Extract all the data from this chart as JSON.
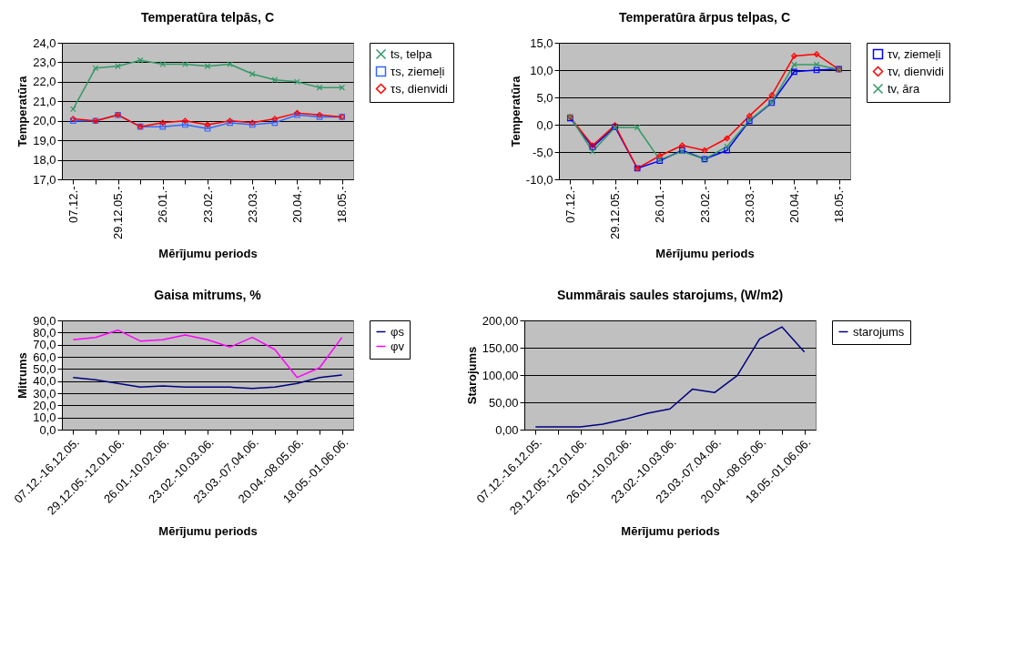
{
  "chart_data": [
    {
      "type": "line",
      "title": "Temperatūra telpās, C",
      "xlabel": "Mērījumu periods",
      "ylabel": "Temperatūra",
      "categories": [
        "07.12.-",
        null,
        "29.12.05.-",
        null,
        "26.01.-",
        null,
        "23.02.-",
        null,
        "23.03.-",
        null,
        "20.04.-",
        null,
        "18.05.-"
      ],
      "series": [
        {
          "name": "ts, telpa",
          "color": "#339966",
          "marker": "cross",
          "values": [
            20.6,
            22.7,
            22.8,
            23.1,
            22.9,
            22.9,
            22.8,
            22.9,
            22.4,
            22.1,
            22.0,
            21.7,
            21.7
          ]
        },
        {
          "name": "τs, ziemeļi",
          "color": "#3366ff",
          "marker": "square",
          "values": [
            20.0,
            20.0,
            20.3,
            19.7,
            19.7,
            19.8,
            19.6,
            19.9,
            19.8,
            19.9,
            20.3,
            20.2,
            20.2
          ]
        },
        {
          "name": "τs, dienvidi",
          "color": "#ff0000",
          "marker": "diamond",
          "values": [
            20.1,
            20.0,
            20.3,
            19.7,
            19.9,
            20.0,
            19.8,
            20.0,
            19.9,
            20.1,
            20.4,
            20.3,
            20.2
          ]
        }
      ],
      "ylim": [
        17,
        24
      ],
      "yticks": [
        {
          "value": 17,
          "label": "17,0"
        },
        {
          "value": 18,
          "label": "18,0"
        },
        {
          "value": 19,
          "label": "19,0"
        },
        {
          "value": 20,
          "label": "20,0"
        },
        {
          "value": 21,
          "label": "21,0"
        },
        {
          "value": 22,
          "label": "22,0"
        },
        {
          "value": 23,
          "label": "23,0"
        },
        {
          "value": 24,
          "label": "24,0"
        }
      ],
      "grid": "y",
      "legend": "right"
    },
    {
      "type": "line",
      "title": "Temperatūra ārpus telpas, C",
      "xlabel": "Mērījumu periods",
      "ylabel": "Temperatūra",
      "categories": [
        "07.12.-",
        null,
        "29.12.05.-",
        null,
        "26.01.-",
        null,
        "23.02.-",
        null,
        "23.03.-",
        null,
        "20.04.-",
        null,
        "18.05.-"
      ],
      "series": [
        {
          "name": "τv, ziemeļi",
          "color": "#0000ff",
          "marker": "square",
          "values": [
            1.2,
            -4.1,
            -0.4,
            -8.0,
            -6.6,
            -4.7,
            -6.3,
            -4.7,
            0.7,
            4.0,
            9.7,
            10.0,
            10.2
          ]
        },
        {
          "name": "τv, dienvidi",
          "color": "#ff0000",
          "marker": "diamond",
          "values": [
            1.4,
            -3.8,
            -0.1,
            -8.0,
            -5.7,
            -3.8,
            -4.7,
            -2.5,
            1.6,
            5.4,
            12.6,
            12.9,
            10.1
          ]
        },
        {
          "name": "tv, āra",
          "color": "#339966",
          "marker": "cross",
          "values": [
            1.5,
            -4.9,
            -0.5,
            -0.5,
            -6.4,
            -4.9,
            -6.3,
            -4.0,
            0.8,
            4.1,
            11.0,
            11.0,
            10.1
          ]
        }
      ],
      "ylim": [
        -10,
        15
      ],
      "yticks": [
        {
          "value": -10,
          "label": "-10,0"
        },
        {
          "value": -5,
          "label": "-5,0"
        },
        {
          "value": 0,
          "label": "0,0"
        },
        {
          "value": 5,
          "label": "5,0"
        },
        {
          "value": 10,
          "label": "10,0"
        },
        {
          "value": 15,
          "label": "15,0"
        }
      ],
      "grid": "y",
      "legend": "right"
    },
    {
      "type": "line",
      "title": "Gaisa mitrums, %",
      "xlabel": "Mērījumu periods",
      "ylabel": "Mitrums",
      "categories": [
        "07.12.-16.12.05.",
        null,
        "29.12.05.-12.01.06.",
        null,
        "26.01.-10.02.06.",
        null,
        "23.02.-10.03.06.",
        null,
        "23.03.-07.04.06.",
        null,
        "20.04.-08.05.06.",
        null,
        "18.05.-01.06.06."
      ],
      "series": [
        {
          "name": "φs",
          "color": "#000080",
          "values": [
            43,
            41,
            38,
            35,
            36,
            35,
            35,
            35,
            34,
            35,
            38,
            43,
            45
          ]
        },
        {
          "name": "φv",
          "color": "#ff00ff",
          "values": [
            74,
            76,
            82,
            73,
            74,
            78,
            74,
            68,
            76,
            66,
            43,
            51,
            76
          ]
        }
      ],
      "ylim": [
        0,
        90
      ],
      "yticks": [
        {
          "value": 0,
          "label": "0,0"
        },
        {
          "value": 10,
          "label": "10,0"
        },
        {
          "value": 20,
          "label": "20,0"
        },
        {
          "value": 30,
          "label": "30,0"
        },
        {
          "value": 40,
          "label": "40,0"
        },
        {
          "value": 50,
          "label": "50,0"
        },
        {
          "value": 60,
          "label": "60,0"
        },
        {
          "value": 70,
          "label": "70,0"
        },
        {
          "value": 80,
          "label": "80,0"
        },
        {
          "value": 90,
          "label": "90,0"
        }
      ],
      "grid": "y",
      "legend": "right"
    },
    {
      "type": "line",
      "title": "Summārais saules starojums, (W/m2)",
      "xlabel": "Mērījumu periods",
      "ylabel": "Starojums",
      "categories": [
        "07.12.-16.12.05.",
        null,
        "29.12.05.-12.01.06.",
        null,
        "26.01.-10.02.06.",
        null,
        "23.02.-10.03.06.",
        null,
        "23.03.-07.04.06.",
        null,
        "20.04.-08.05.06.",
        null,
        "18.05.-01.06.06."
      ],
      "series": [
        {
          "name": "starojums",
          "color": "#000080",
          "values": [
            5,
            5,
            5,
            10,
            19,
            30,
            38,
            74,
            68,
            99,
            166,
            188,
            142
          ]
        }
      ],
      "ylim": [
        0,
        200
      ],
      "yticks": [
        {
          "value": 0,
          "label": "0,00"
        },
        {
          "value": 50,
          "label": "50,00"
        },
        {
          "value": 100,
          "label": "100,00"
        },
        {
          "value": 150,
          "label": "150,00"
        },
        {
          "value": 200,
          "label": "200,00"
        }
      ],
      "grid": "y",
      "legend": "right"
    }
  ]
}
